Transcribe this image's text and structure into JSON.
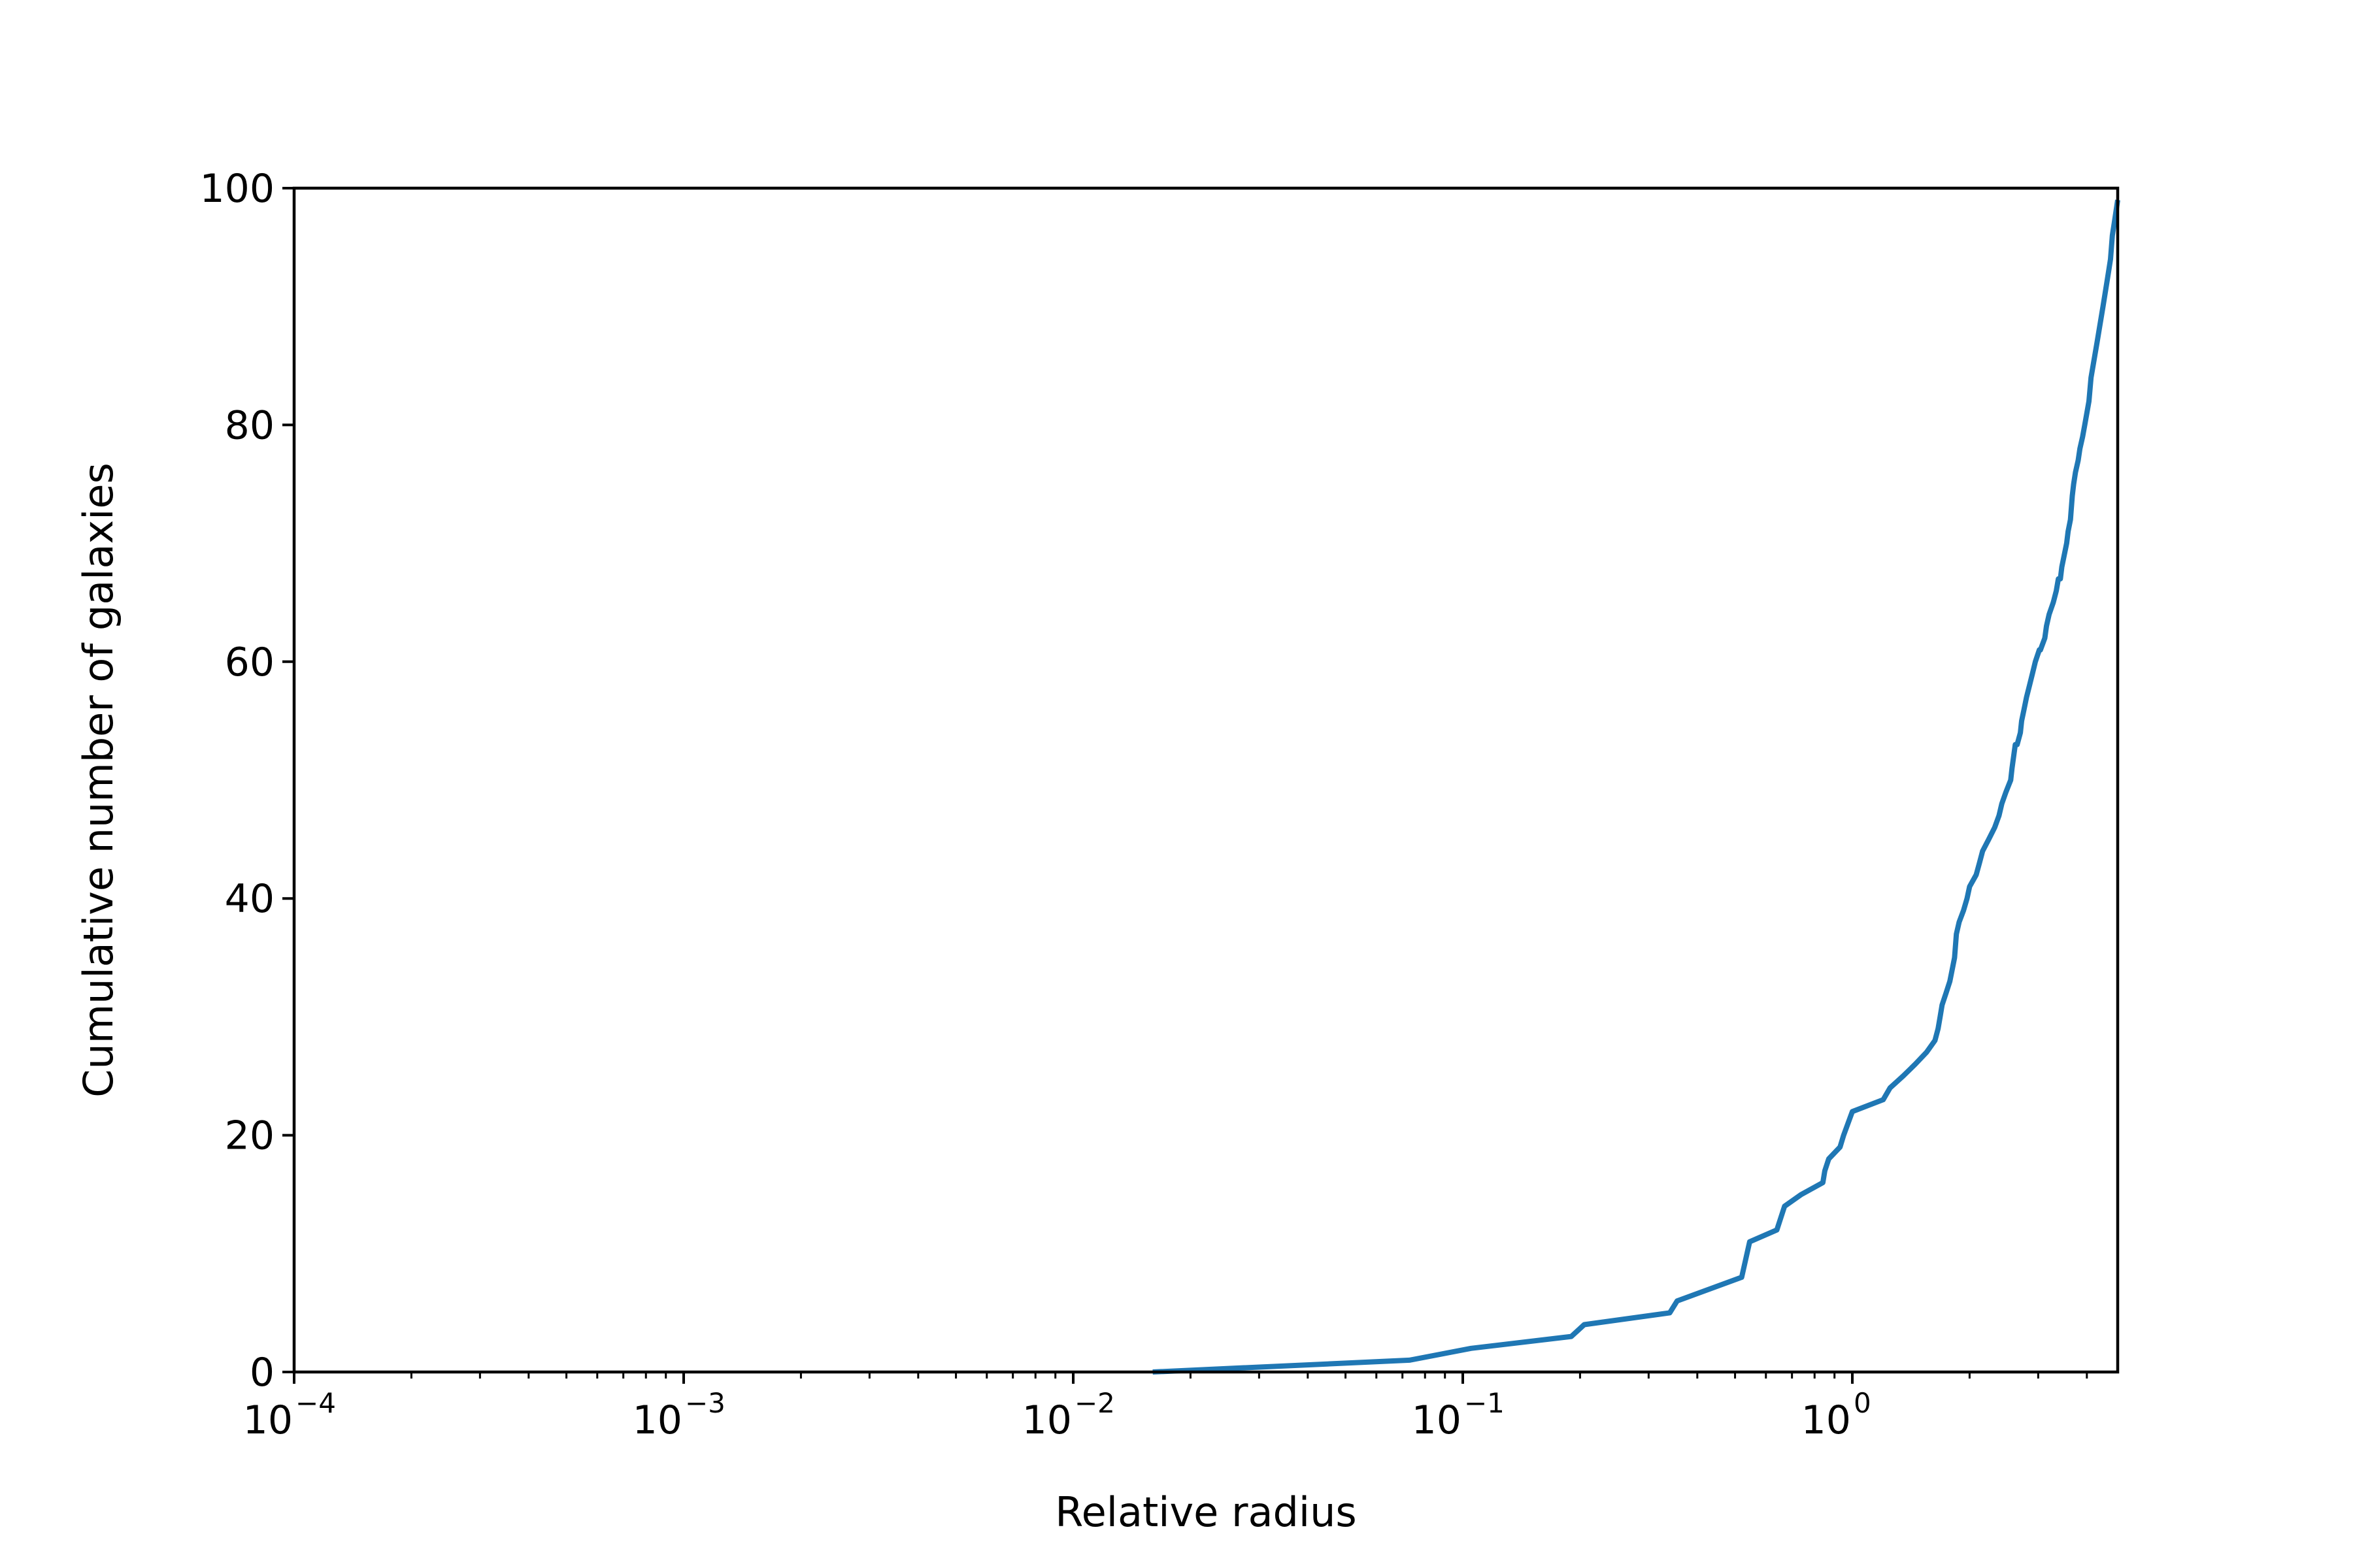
{
  "colors": {
    "line": "#1f77b4",
    "axes": "#000000",
    "background": "#ffffff"
  },
  "chart_data": {
    "type": "line",
    "title": "",
    "xlabel": "Relative radius",
    "ylabel": "Cumulative number of galaxies",
    "xscale": "log",
    "xlim": [
      0.0001,
      4.8
    ],
    "ylim": [
      0,
      100
    ],
    "grid": false,
    "legend": "none",
    "x_ticks": [
      {
        "value": 0.0001,
        "base": "10",
        "exp": "−4"
      },
      {
        "value": 0.001,
        "base": "10",
        "exp": "−3"
      },
      {
        "value": 0.01,
        "base": "10",
        "exp": "−2"
      },
      {
        "value": 0.1,
        "base": "10",
        "exp": "−1"
      },
      {
        "value": 1,
        "base": "10",
        "exp": "0"
      }
    ],
    "y_ticks": [
      {
        "value": 0,
        "label": "0"
      },
      {
        "value": 20,
        "label": "20"
      },
      {
        "value": 40,
        "label": "40"
      },
      {
        "value": 60,
        "label": "60"
      },
      {
        "value": 80,
        "label": "80"
      },
      {
        "value": 100,
        "label": "100"
      }
    ],
    "series": [
      {
        "x": [
          0.016,
          0.073,
          0.105,
          0.19,
          0.205,
          0.34,
          0.355,
          0.52,
          0.545,
          0.64,
          0.67,
          0.74,
          0.84,
          0.85,
          0.87,
          0.93,
          0.95,
          1.0,
          1.2,
          1.25,
          1.35,
          1.45,
          1.55,
          1.63,
          1.66,
          1.68,
          1.7,
          1.74,
          1.78,
          1.83,
          1.85,
          1.88,
          1.93,
          1.97,
          2.0,
          2.08,
          2.12,
          2.16,
          2.24,
          2.32,
          2.38,
          2.42,
          2.48,
          2.55,
          2.57,
          2.62,
          2.65,
          2.7,
          2.72,
          2.76,
          2.8,
          2.85,
          2.9,
          2.95,
          3.02,
          3.04,
          3.12,
          3.15,
          3.2,
          3.28,
          3.34,
          3.38,
          3.42,
          3.45,
          3.5,
          3.55,
          3.58,
          3.63,
          3.67,
          3.7,
          3.74,
          3.8,
          3.84,
          3.9,
          3.95,
          4.0,
          4.05,
          4.1,
          4.15,
          4.2,
          4.25,
          4.3,
          4.35,
          4.4,
          4.45,
          4.5,
          4.55,
          4.6,
          4.65,
          4.7,
          4.75,
          4.8
        ],
        "y": [
          0,
          1,
          2,
          3,
          4,
          5,
          6,
          8,
          11,
          12,
          14,
          15,
          16,
          17,
          18,
          19,
          20,
          22,
          23,
          24,
          25,
          26,
          27,
          28,
          29,
          30,
          31,
          32,
          33,
          35,
          37,
          38,
          39,
          40,
          41,
          42,
          43,
          44,
          45,
          46,
          47,
          48,
          49,
          50,
          51,
          53,
          53,
          54,
          55,
          56,
          57,
          58,
          59,
          60,
          61,
          61,
          62,
          63,
          64,
          65,
          66,
          67,
          67,
          68,
          69,
          70,
          71,
          72,
          74,
          75,
          76,
          77,
          78,
          79,
          80,
          81,
          82,
          84,
          85,
          86,
          87,
          88,
          89,
          90,
          91,
          92,
          93,
          94,
          96,
          97,
          98,
          99
        ]
      }
    ]
  }
}
